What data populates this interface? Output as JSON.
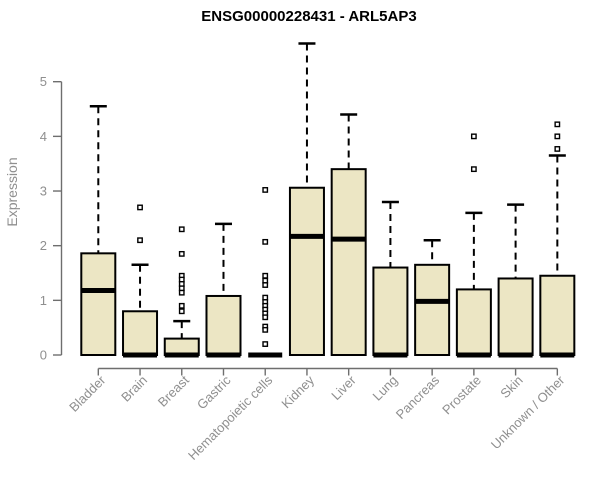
{
  "chart_data": {
    "type": "boxplot",
    "title": "ENSG00000228431 - ARL5AP3",
    "ylabel": "Expression",
    "xlabel": "",
    "yticks": [
      0,
      1,
      2,
      3,
      4,
      5
    ],
    "ylim": [
      0,
      5.8
    ],
    "grid": false,
    "legend": "none",
    "colors": {
      "box_fill": "#ece6c4",
      "box_stroke": "#000000",
      "median": "#000000",
      "axis": "#6e6e6e",
      "labels": "#8f8f8f",
      "title": "#000000",
      "outlier_fill": "#ffffff"
    },
    "categories": [
      "Bladder",
      "Brain",
      "Breast",
      "Gastric",
      "Hematopoietic cells",
      "Kidney",
      "Liver",
      "Lung",
      "Pancreas",
      "Prostate",
      "Skin",
      "Unknown / Other"
    ],
    "boxes": [
      {
        "category": "Bladder",
        "whisker_low": 0,
        "q1": 0,
        "median": 1.18,
        "q3": 1.86,
        "whisker_high": 4.55,
        "outliers": []
      },
      {
        "category": "Brain",
        "whisker_low": 0,
        "q1": 0,
        "median": 0,
        "q3": 0.8,
        "whisker_high": 1.65,
        "outliers": [
          2.7,
          2.1
        ]
      },
      {
        "category": "Breast",
        "whisker_low": 0,
        "q1": 0,
        "median": 0,
        "q3": 0.3,
        "whisker_high": 0.62,
        "outliers": [
          2.3,
          1.85,
          1.45,
          1.38,
          1.3,
          1.22,
          1.14,
          0.9,
          0.8
        ]
      },
      {
        "category": "Gastric",
        "whisker_low": 0,
        "q1": 0,
        "median": 0,
        "q3": 1.08,
        "whisker_high": 2.4,
        "outliers": []
      },
      {
        "category": "Hematopoietic cells",
        "whisker_low": 0,
        "q1": 0,
        "median": 0,
        "q3": 0,
        "whisker_high": 0,
        "outliers": [
          3.02,
          2.07,
          1.45,
          1.36,
          1.28,
          1.05,
          0.97,
          0.9,
          0.83,
          0.76,
          0.69,
          0.52,
          0.46,
          0.2
        ]
      },
      {
        "category": "Kidney",
        "whisker_low": 0,
        "q1": 0,
        "median": 2.17,
        "q3": 3.06,
        "whisker_high": 5.7,
        "outliers": []
      },
      {
        "category": "Liver",
        "whisker_low": 0,
        "q1": 0,
        "median": 2.12,
        "q3": 3.4,
        "whisker_high": 4.4,
        "outliers": []
      },
      {
        "category": "Lung",
        "whisker_low": 0,
        "q1": 0,
        "median": 0,
        "q3": 1.6,
        "whisker_high": 2.8,
        "outliers": []
      },
      {
        "category": "Pancreas",
        "whisker_low": 0,
        "q1": 0,
        "median": 0.98,
        "q3": 1.65,
        "whisker_high": 2.1,
        "outliers": []
      },
      {
        "category": "Prostate",
        "whisker_low": 0,
        "q1": 0,
        "median": 0,
        "q3": 1.2,
        "whisker_high": 2.6,
        "outliers": [
          4.0,
          3.4
        ]
      },
      {
        "category": "Skin",
        "whisker_low": 0,
        "q1": 0,
        "median": 0,
        "q3": 1.4,
        "whisker_high": 2.75,
        "outliers": []
      },
      {
        "category": "Unknown / Other",
        "whisker_low": 0,
        "q1": 0,
        "median": 0,
        "q3": 1.45,
        "whisker_high": 3.65,
        "outliers": [
          4.22,
          4.0,
          3.77
        ]
      }
    ]
  }
}
